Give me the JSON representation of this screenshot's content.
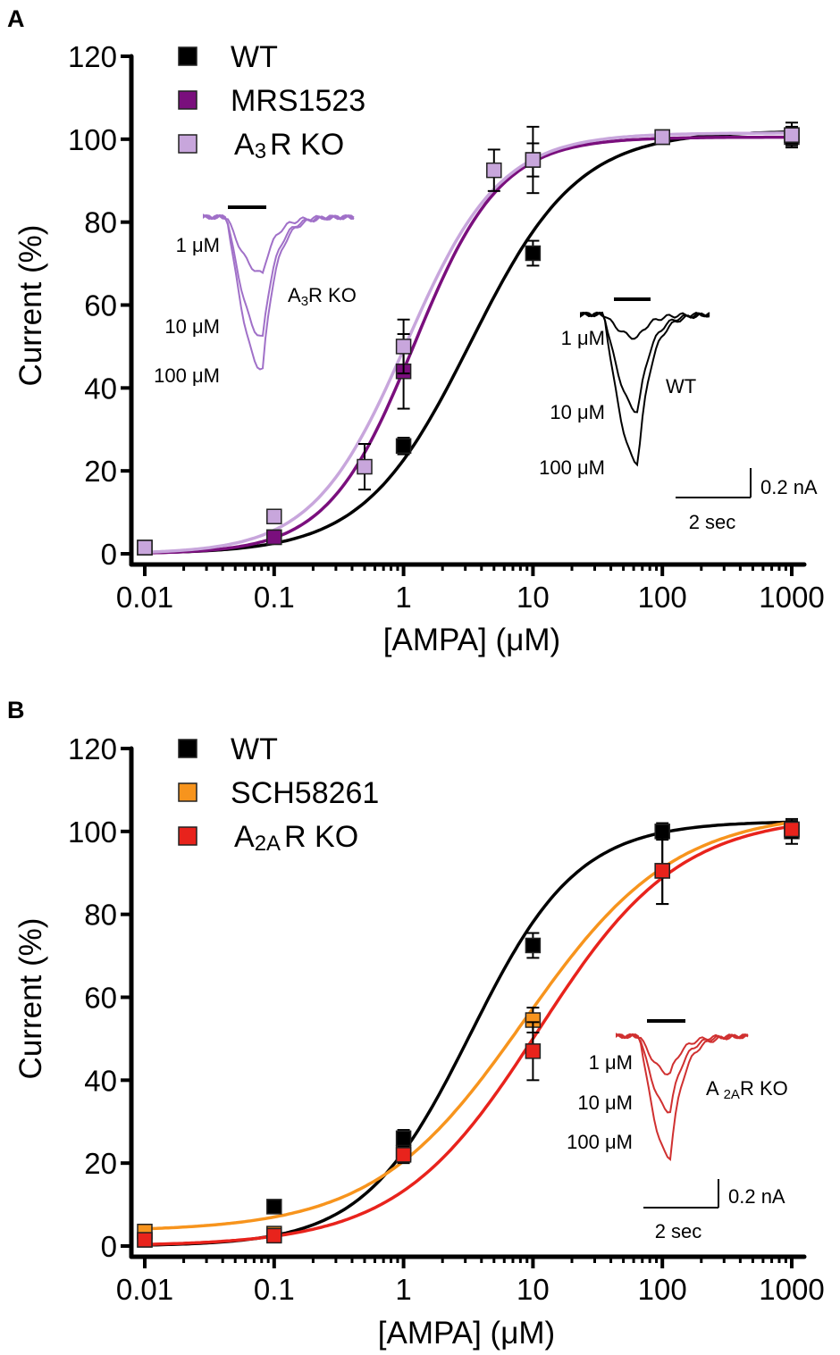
{
  "chart_data": [
    {
      "panel_label": "A",
      "type": "scatter",
      "xscale": "log",
      "xlabel": "[AMPA] (μM)",
      "ylabel": "Current (%)",
      "xlim": [
        0.01,
        1000
      ],
      "ylim": [
        0,
        120
      ],
      "x_tick_labels": [
        "0.01",
        "0.1",
        "1",
        "10",
        "100",
        "1000"
      ],
      "y_tick_labels": [
        "0",
        "20",
        "40",
        "60",
        "80",
        "100",
        "120"
      ],
      "series": [
        {
          "name": "WT",
          "legend_label": "WT",
          "color": "#000000",
          "fit": {
            "ec50": 3.3,
            "hill": 1.05,
            "top": 102
          },
          "x": [
            0.01,
            0.1,
            1,
            10,
            100,
            1000
          ],
          "y": [
            1.5,
            4,
            26,
            72.5,
            100.5,
            101
          ],
          "err": [
            0.5,
            1,
            2,
            3,
            1,
            3
          ]
        },
        {
          "name": "MRS1523",
          "legend_label": "MRS1523",
          "color": "#7a0f7d",
          "fit": {
            "ec50": 1.2,
            "hill": 1.3,
            "top": 100.5
          },
          "x": [
            0.01,
            0.1,
            1,
            10,
            100,
            1000
          ],
          "y": [
            1.5,
            4,
            44,
            95,
            100.5,
            100.5
          ],
          "err": [
            0.5,
            1,
            9,
            4,
            1,
            2
          ]
        },
        {
          "name": "A3R KO",
          "legend_label_main": "A",
          "legend_label_sub": "3",
          "legend_label_rest": "R KO",
          "color": "#c8a6dc",
          "fit": {
            "ec50": 1.05,
            "hill": 1.2,
            "top": 101.5
          },
          "x": [
            0.01,
            0.1,
            0.5,
            1,
            5,
            10,
            100,
            1000
          ],
          "y": [
            1.5,
            9,
            21,
            50,
            92.5,
            95,
            100.5,
            101
          ],
          "err": [
            0.5,
            1.5,
            5.5,
            6.5,
            5,
            8,
            1,
            2
          ]
        }
      ],
      "insets": [
        {
          "name": "A3R KO traces",
          "color": "#a070c8",
          "label_main": "A",
          "label_sub": "3",
          "label_rest": "R KO",
          "traces": [
            "1 μM",
            "10 μM",
            "100 μM"
          ]
        },
        {
          "name": "WT traces",
          "color": "#000000",
          "label": "WT",
          "traces": [
            "1 μM",
            "10 μM",
            "100 μM"
          ]
        }
      ],
      "scale_bar": {
        "y_label": "0.2 nA",
        "x_label": "2 sec"
      }
    },
    {
      "panel_label": "B",
      "type": "scatter",
      "xscale": "log",
      "xlabel": "[AMPA] (μM)",
      "ylabel": "Current (%)",
      "xlim": [
        0.01,
        1000
      ],
      "ylim": [
        0,
        120
      ],
      "x_tick_labels": [
        "0.01",
        "0.1",
        "1",
        "10",
        "100",
        "1000"
      ],
      "y_tick_labels": [
        "0",
        "20",
        "40",
        "60",
        "80",
        "100",
        "120"
      ],
      "series": [
        {
          "name": "WT",
          "legend_label": "WT",
          "color": "#000000",
          "fit": {
            "ec50": 3.3,
            "hill": 1.05,
            "top": 102.5
          },
          "x": [
            0.01,
            0.1,
            1,
            10,
            100,
            1000
          ],
          "y": [
            1.5,
            9.5,
            26,
            72.5,
            100,
            100
          ],
          "err": [
            0.5,
            1.5,
            2,
            3,
            2,
            3
          ]
        },
        {
          "name": "SCH58261",
          "legend_label": "SCH58261",
          "color": "#f7941d",
          "fit": {
            "ec50": 8.5,
            "hill": 0.75,
            "top": 105,
            "bottom": 3.5
          },
          "x": [
            0.01,
            0.1,
            1,
            10,
            100,
            1000
          ],
          "y": [
            3.5,
            3,
            22.5,
            54.5,
            90.5,
            100.5
          ],
          "err": [
            1.5,
            1,
            2,
            3,
            8,
            2
          ]
        },
        {
          "name": "A2AR KO",
          "legend_label_main": "A",
          "legend_label_sub": "2A",
          "legend_label_rest": "R KO",
          "color": "#e8231c",
          "fit": {
            "ec50": 11,
            "hill": 0.8,
            "top": 104
          },
          "x": [
            0.01,
            0.1,
            1,
            10,
            100,
            1000
          ],
          "y": [
            1.5,
            2.5,
            22,
            47,
            90.5,
            100.5
          ],
          "err": [
            1,
            1,
            2,
            7,
            8,
            2
          ]
        }
      ],
      "insets": [
        {
          "name": "A2AR KO traces",
          "color": "#d03030",
          "label_main": "A ",
          "label_sub": "2A",
          "label_rest": "R KO",
          "traces": [
            "1 μM",
            "10 μM",
            "100 μM"
          ]
        }
      ],
      "scale_bar": {
        "y_label": "0.2 nA",
        "x_label": "2 sec"
      }
    }
  ]
}
